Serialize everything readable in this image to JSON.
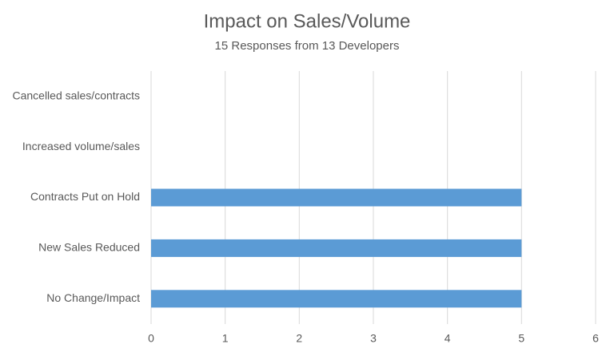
{
  "chart_data": {
    "type": "barh",
    "title": "Impact on Sales/Volume",
    "subtitle": "15 Responses from 13 Developers",
    "categories": [
      "Cancelled sales/contracts",
      "Increased volume/sales",
      "Contracts Put on Hold",
      "New Sales Reduced",
      "No Change/Impact"
    ],
    "values": [
      0,
      0,
      5,
      5,
      5
    ],
    "color": "#5b9bd5",
    "xlim": [
      0,
      6
    ],
    "xticks": [
      0,
      1,
      2,
      3,
      4,
      5,
      6
    ],
    "grid": true
  }
}
